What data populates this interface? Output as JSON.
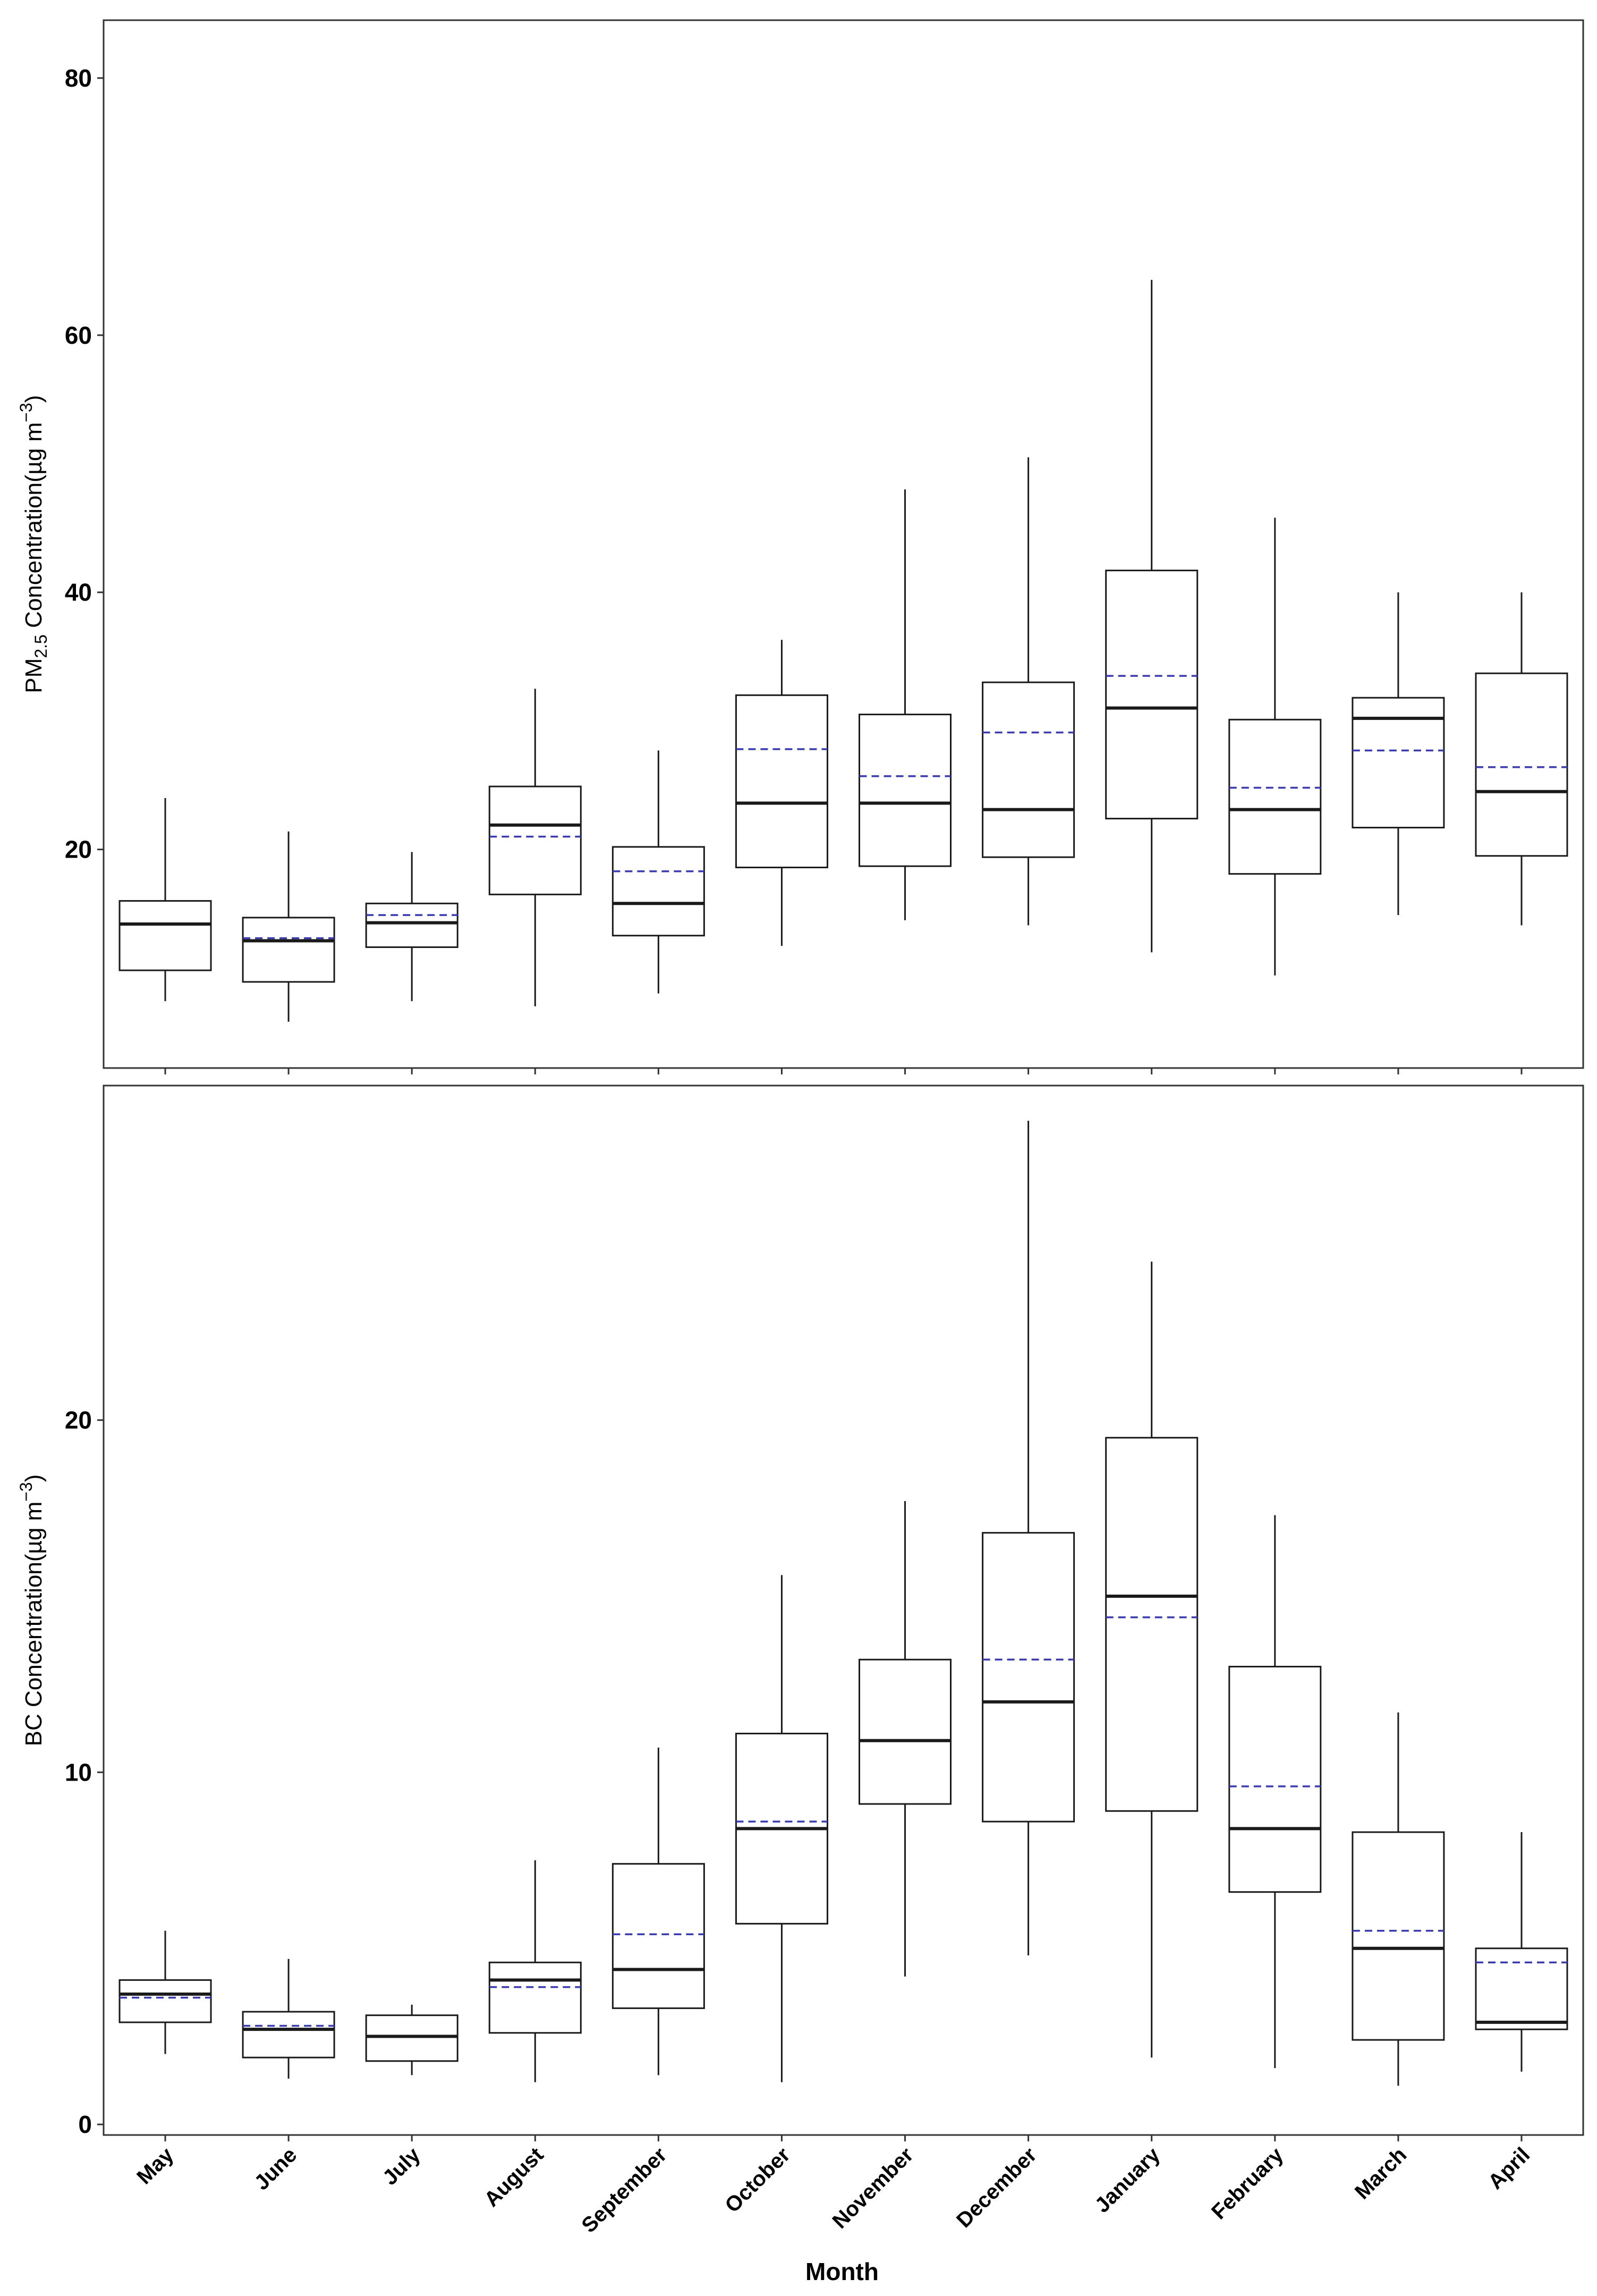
{
  "figure": {
    "xlabel": "Month"
  },
  "chart_data": [
    {
      "type": "box",
      "id": "pm25",
      "title": "",
      "xlabel": "",
      "ylabel": {
        "prefix": "PM",
        "subscript": "2.5",
        "mid": " Concentration(",
        "unit": "µg m",
        "superscript": "−3",
        "suffix": ")"
      },
      "ylim": [
        3,
        84.5
      ],
      "yticks": [
        20,
        40,
        60,
        80
      ],
      "ytick_labels": [
        "20",
        "40",
        "60",
        "80"
      ],
      "grid": false,
      "legend": "none",
      "categories": [
        "May",
        "June",
        "July",
        "August",
        "September",
        "October",
        "November",
        "December",
        "January",
        "February",
        "March",
        "April"
      ],
      "colors": {
        "box": "#1a1a1a",
        "median": "#1a1a1a",
        "mean": "#3b3bb0"
      },
      "boxes": [
        {
          "whisker_low": 8.2,
          "q1": 10.6,
          "median": 14.2,
          "q3": 16.0,
          "whisker_high": 24.0,
          "mean": 14.2
        },
        {
          "whisker_low": 6.6,
          "q1": 9.7,
          "median": 12.9,
          "q3": 14.7,
          "whisker_high": 21.4,
          "mean": 13.1
        },
        {
          "whisker_low": 8.2,
          "q1": 12.4,
          "median": 14.3,
          "q3": 15.8,
          "whisker_high": 19.8,
          "mean": 14.9
        },
        {
          "whisker_low": 7.8,
          "q1": 16.5,
          "median": 21.9,
          "q3": 24.9,
          "whisker_high": 32.5,
          "mean": 21.0
        },
        {
          "whisker_low": 8.8,
          "q1": 13.3,
          "median": 15.8,
          "q3": 20.2,
          "whisker_high": 27.7,
          "mean": 18.3
        },
        {
          "whisker_low": 12.5,
          "q1": 18.6,
          "median": 23.6,
          "q3": 32.0,
          "whisker_high": 36.3,
          "mean": 27.8
        },
        {
          "whisker_low": 14.5,
          "q1": 18.7,
          "median": 23.6,
          "q3": 30.5,
          "whisker_high": 48.0,
          "mean": 25.7
        },
        {
          "whisker_low": 14.1,
          "q1": 19.4,
          "median": 23.1,
          "q3": 33.0,
          "whisker_high": 50.5,
          "mean": 29.1
        },
        {
          "whisker_low": 12.0,
          "q1": 22.4,
          "median": 31.0,
          "q3": 41.7,
          "whisker_high": 64.3,
          "mean": 33.5
        },
        {
          "whisker_low": 10.2,
          "q1": 18.1,
          "median": 23.1,
          "q3": 30.1,
          "whisker_high": 45.8,
          "mean": 24.8
        },
        {
          "whisker_low": 14.9,
          "q1": 21.7,
          "median": 30.2,
          "q3": 31.8,
          "whisker_high": 40.0,
          "mean": 27.7
        },
        {
          "whisker_low": 14.1,
          "q1": 19.5,
          "median": 24.5,
          "q3": 33.7,
          "whisker_high": 40.0,
          "mean": 26.4
        }
      ]
    },
    {
      "type": "box",
      "id": "bc",
      "title": "",
      "xlabel": "Month",
      "ylabel": {
        "prefix": "BC",
        "subscript": "",
        "mid": " Concentration(",
        "unit": "µg m",
        "superscript": "−3",
        "suffix": ")"
      },
      "ylim": [
        -0.3,
        29.5
      ],
      "yticks": [
        0,
        10,
        20
      ],
      "ytick_labels": [
        "0",
        "10",
        "20"
      ],
      "grid": false,
      "legend": "none",
      "categories": [
        "May",
        "June",
        "July",
        "August",
        "September",
        "October",
        "November",
        "December",
        "January",
        "February",
        "March",
        "April"
      ],
      "colors": {
        "box": "#1a1a1a",
        "median": "#1a1a1a",
        "mean": "#3b3bb0"
      },
      "boxes": [
        {
          "whisker_low": 2.0,
          "q1": 2.9,
          "median": 3.7,
          "q3": 4.1,
          "whisker_high": 5.5,
          "mean": 3.6
        },
        {
          "whisker_low": 1.3,
          "q1": 1.9,
          "median": 2.7,
          "q3": 3.2,
          "whisker_high": 4.7,
          "mean": 2.8
        },
        {
          "whisker_low": 1.4,
          "q1": 1.8,
          "median": 2.5,
          "q3": 3.1,
          "whisker_high": 3.4,
          "mean": 2.5
        },
        {
          "whisker_low": 1.2,
          "q1": 2.6,
          "median": 4.1,
          "q3": 4.6,
          "whisker_high": 7.5,
          "mean": 3.9
        },
        {
          "whisker_low": 1.4,
          "q1": 3.3,
          "median": 4.4,
          "q3": 7.4,
          "whisker_high": 10.7,
          "mean": 5.4
        },
        {
          "whisker_low": 1.2,
          "q1": 5.7,
          "median": 8.4,
          "q3": 11.1,
          "whisker_high": 15.6,
          "mean": 8.6
        },
        {
          "whisker_low": 4.2,
          "q1": 9.1,
          "median": 10.9,
          "q3": 13.2,
          "whisker_high": 17.7,
          "mean": 10.9
        },
        {
          "whisker_low": 4.8,
          "q1": 8.6,
          "median": 12.0,
          "q3": 16.8,
          "whisker_high": 28.5,
          "mean": 13.2
        },
        {
          "whisker_low": 1.9,
          "q1": 8.9,
          "median": 15.0,
          "q3": 19.5,
          "whisker_high": 24.5,
          "mean": 14.4
        },
        {
          "whisker_low": 1.6,
          "q1": 6.6,
          "median": 8.4,
          "q3": 13.0,
          "whisker_high": 17.3,
          "mean": 9.6
        },
        {
          "whisker_low": 1.1,
          "q1": 2.4,
          "median": 5.0,
          "q3": 8.3,
          "whisker_high": 11.7,
          "mean": 5.5
        },
        {
          "whisker_low": 1.5,
          "q1": 2.7,
          "median": 2.9,
          "q3": 5.0,
          "whisker_high": 8.3,
          "mean": 4.6
        }
      ]
    }
  ]
}
